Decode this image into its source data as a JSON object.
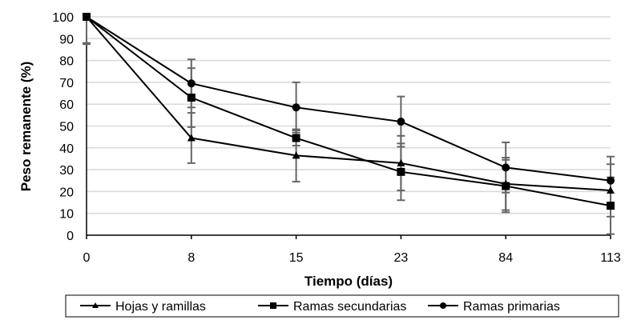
{
  "chart_data": {
    "type": "line",
    "title": "",
    "xlabel": "Tiempo (días)",
    "ylabel": "Peso remanente (%)",
    "categories": [
      "0",
      "8",
      "15",
      "23",
      "84",
      "113"
    ],
    "ylim": [
      0,
      100
    ],
    "yticks": [
      "0",
      "10",
      "20",
      "30",
      "40",
      "50",
      "60",
      "70",
      "80",
      "90",
      "100"
    ],
    "grid": true,
    "legend_position": "bottom",
    "series": [
      {
        "name": "Hojas y ramillas",
        "marker": "triangle",
        "values": [
          100,
          44.5,
          36.5,
          33,
          23.5,
          20.5
        ],
        "error": [
          12,
          11.5,
          12,
          12.5,
          12,
          12
        ]
      },
      {
        "name": "Ramas secundarias",
        "marker": "square",
        "values": [
          100,
          63,
          44.5,
          29,
          22.5,
          13.5
        ],
        "error": [
          12.5,
          13.5,
          3.5,
          13,
          12,
          13
        ]
      },
      {
        "name": "Ramas primarias",
        "marker": "circle",
        "values": [
          100,
          69.5,
          58.5,
          52,
          31,
          25
        ],
        "error": [
          0,
          11,
          11.5,
          11.5,
          11.5,
          11
        ]
      }
    ],
    "colors": {
      "line": "#000000",
      "error_bar": "#666666",
      "grid": "#d9d9d9"
    }
  }
}
